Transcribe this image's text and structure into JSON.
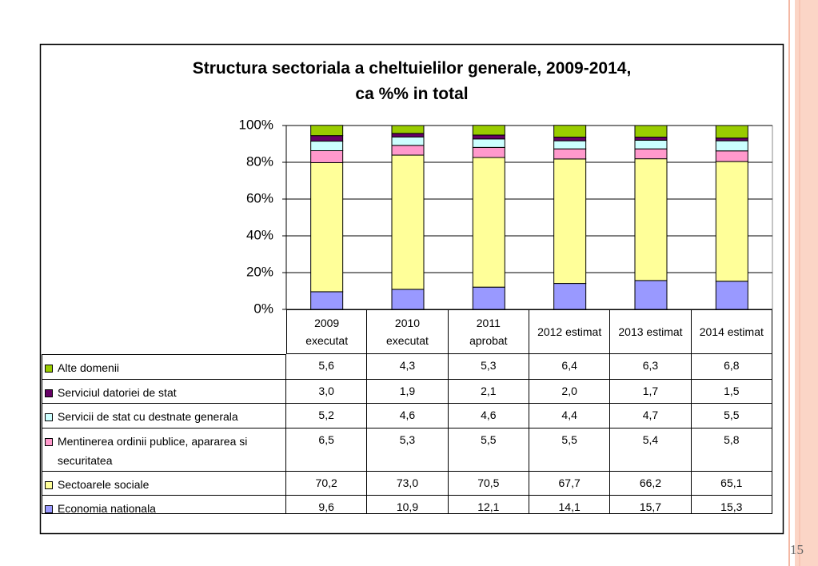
{
  "chart_data": {
    "type": "bar",
    "stacked": true,
    "title": "Structura sectoriala a cheltuielilor generale, 2009-2014,\nca %% in total",
    "categories": [
      "2009\nexecutat",
      "2010\nexecutat",
      "2011\naprobat",
      "2012 estimat",
      "2013 estimat",
      "2014 estimat"
    ],
    "series": [
      {
        "name": "Alte domenii",
        "color": "#99cc00",
        "values": [
          5.6,
          4.3,
          5.3,
          6.4,
          6.3,
          6.8
        ],
        "value_labels": [
          "5,6",
          "4,3",
          "5,3",
          "6,4",
          "6,3",
          "6,8"
        ]
      },
      {
        "name": "Serviciul datoriei de stat",
        "color": "#660066",
        "values": [
          3.0,
          1.9,
          2.1,
          2.0,
          1.7,
          1.5
        ],
        "value_labels": [
          "3,0",
          "1,9",
          "2,1",
          "2,0",
          "1,7",
          "1,5"
        ]
      },
      {
        "name": "Servicii de stat cu destnate generala",
        "color": "#ccffff",
        "values": [
          5.2,
          4.6,
          4.6,
          4.4,
          4.7,
          5.5
        ],
        "value_labels": [
          "5,2",
          "4,6",
          "4,6",
          "4,4",
          "4,7",
          "5,5"
        ]
      },
      {
        "name": "Mentinerea ordinii publice, apararea si securitatea",
        "color": "#ff99cc",
        "values": [
          6.5,
          5.3,
          5.5,
          5.5,
          5.4,
          5.8
        ],
        "value_labels": [
          "6,5",
          "5,3",
          "5,5",
          "5,5",
          "5,4",
          "5,8"
        ]
      },
      {
        "name": "Sectoarele sociale",
        "color": "#ffff99",
        "values": [
          70.2,
          73.0,
          70.5,
          67.7,
          66.2,
          65.1
        ],
        "value_labels": [
          "70,2",
          "73,0",
          "70,5",
          "67,7",
          "66,2",
          "65,1"
        ]
      },
      {
        "name": "Economia nationala",
        "color": "#9999ff",
        "values": [
          9.6,
          10.9,
          12.1,
          14.1,
          15.7,
          15.3
        ],
        "value_labels": [
          "9,6",
          "10,9",
          "12,1",
          "14,1",
          "15,7",
          "15,3"
        ]
      }
    ],
    "ylim": [
      0,
      100
    ],
    "yticks": [
      {
        "value": 0,
        "label": "0%"
      },
      {
        "value": 20,
        "label": "20%"
      },
      {
        "value": 40,
        "label": "40%"
      },
      {
        "value": 60,
        "label": "60%"
      },
      {
        "value": 80,
        "label": "80%"
      },
      {
        "value": 100,
        "label": "100%"
      }
    ],
    "grid": true
  },
  "page_number": "15"
}
